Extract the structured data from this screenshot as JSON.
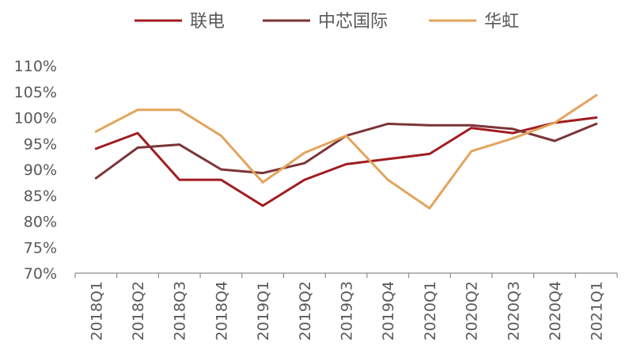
{
  "chart_data": {
    "type": "line",
    "categories": [
      "2018Q1",
      "2018Q2",
      "2018Q3",
      "2018Q4",
      "2019Q1",
      "2019Q2",
      "2019Q3",
      "2019Q4",
      "2020Q1",
      "2020Q2",
      "2020Q3",
      "2020Q4",
      "2021Q1"
    ],
    "ylim": [
      70,
      110
    ],
    "yticks": [
      70,
      75,
      80,
      85,
      90,
      95,
      100,
      105,
      110
    ],
    "ytick_labels": [
      "70%",
      "75%",
      "80%",
      "85%",
      "90%",
      "95%",
      "100%",
      "105%",
      "110%"
    ],
    "y_unit": "%",
    "legend_position": "top",
    "grid": false,
    "series": [
      {
        "name": "联电",
        "color": "#A01C20",
        "values": [
          94,
          97,
          88,
          88,
          83,
          88,
          91,
          92,
          93,
          98,
          97,
          99,
          100
        ]
      },
      {
        "name": "中芯国际",
        "color": "#7B3538",
        "values": [
          88.3,
          94.2,
          94.8,
          90,
          89.3,
          91.2,
          96.5,
          98.8,
          98.5,
          98.5,
          97.8,
          95.5,
          98.8
        ]
      },
      {
        "name": "华虹",
        "color": "#E3A45C",
        "values": [
          97.3,
          101.5,
          101.5,
          96.5,
          87.5,
          93.2,
          96.5,
          88,
          82.5,
          93.5,
          96,
          99,
          104.3
        ]
      }
    ]
  }
}
